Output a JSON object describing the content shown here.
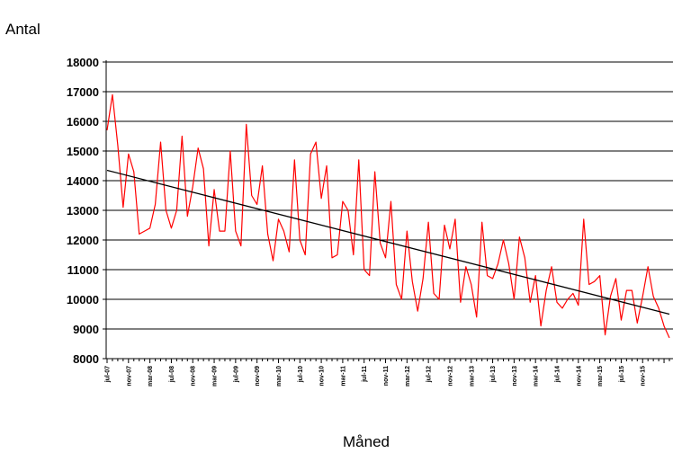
{
  "chart_data": {
    "type": "line",
    "title": "",
    "ylabel": "Antal",
    "xlabel": "Måned",
    "ylim": [
      8000,
      18000
    ],
    "yticks": [
      8000,
      9000,
      10000,
      11000,
      12000,
      13000,
      14000,
      15000,
      16000,
      17000,
      18000
    ],
    "ytick_labels": [
      "8000",
      "9000",
      "10000",
      "11000",
      "12000",
      "13000",
      "14000",
      "15000",
      "16000",
      "17000",
      "18000"
    ],
    "grid": true,
    "legend": "none",
    "x_tick_labels": [
      "jul-07",
      "nov-07",
      "mar-08",
      "jul-08",
      "nov-08",
      "mar-09",
      "jul-09",
      "nov-09",
      "mar-10",
      "jul-10",
      "nov-10",
      "mar-11",
      "jul-11",
      "nov-11",
      "mar-12",
      "jul-12",
      "nov-12",
      "mar-13",
      "jul-13",
      "nov-13",
      "mar-14",
      "jul-14",
      "nov-14",
      "mar-15",
      "jul-15",
      "nov-15"
    ],
    "series": [
      {
        "color": "#ff0000",
        "values": [
          15700,
          16900,
          15200,
          13100,
          14900,
          14300,
          12200,
          12300,
          12400,
          13200,
          15300,
          13000,
          12400,
          13000,
          15500,
          12800,
          13800,
          15100,
          14400,
          11800,
          13700,
          12300,
          12300,
          15000,
          12300,
          11800,
          15900,
          13500,
          13200,
          14500,
          12200,
          11300,
          12700,
          12300,
          11600,
          14700,
          12000,
          11500,
          14900,
          15300,
          13400,
          14500,
          11400,
          11500,
          13300,
          13000,
          11500,
          14700,
          11000,
          10800,
          14300,
          11900,
          11400,
          13300,
          10500,
          10000,
          12300,
          10600,
          9600,
          10700,
          12600,
          10200,
          10000,
          12500,
          11700,
          12700,
          9900,
          11100,
          10500,
          9400,
          12600,
          10800,
          10700,
          11200,
          12000,
          11200,
          10000,
          12100,
          11400,
          9900,
          10800,
          9100,
          10300,
          11100,
          9900,
          9700,
          10000,
          10200,
          9800,
          12700,
          10500,
          10600,
          10800,
          8800,
          10100,
          10700,
          9300,
          10300,
          10300,
          9200,
          10100,
          11100,
          10100,
          9700,
          9100,
          8700
        ]
      },
      {
        "color": "#000000",
        "values": [
          14350,
          9500
        ]
      }
    ]
  }
}
